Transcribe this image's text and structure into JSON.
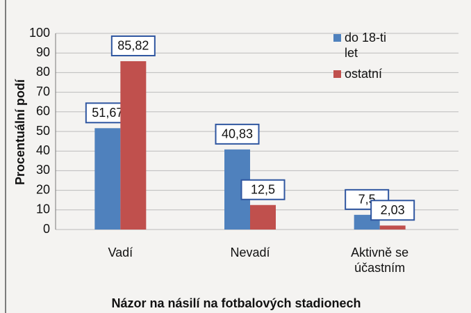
{
  "chart_data": {
    "type": "bar",
    "categories": [
      "Vadí",
      "Nevadí",
      "Aktivně se účastním"
    ],
    "series": [
      {
        "name": "do 18-ti let",
        "color": "#4f81bd",
        "values": [
          51.67,
          40.83,
          7.5
        ],
        "value_labels": [
          "51,67",
          "40,83",
          "7,5"
        ]
      },
      {
        "name": "ostatní",
        "color": "#c0504d",
        "values": [
          85.82,
          12.5,
          2.03
        ],
        "value_labels": [
          "85,82",
          "12,5",
          "2,03"
        ]
      }
    ],
    "ylabel": "Procentuální podí",
    "xlabel": "Názor na násilí na fotbalových stadionech",
    "ylim": [
      0,
      100
    ],
    "yticks": [
      0,
      10,
      20,
      30,
      40,
      50,
      60,
      70,
      80,
      90,
      100
    ],
    "grid": true,
    "legend": "top-right"
  }
}
